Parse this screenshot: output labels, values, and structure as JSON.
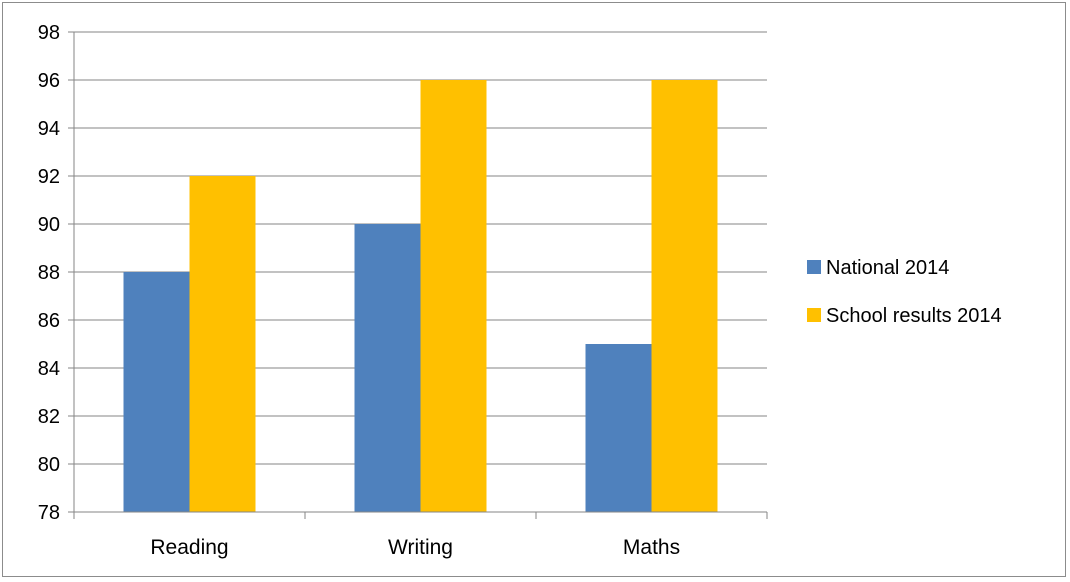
{
  "chart_data": {
    "type": "bar",
    "title": "",
    "xlabel": "",
    "ylabel": "",
    "categories": [
      "Reading",
      "Writing",
      "Maths"
    ],
    "series": [
      {
        "name": "National 2014",
        "color": "#4f81bd",
        "values": [
          88,
          90,
          85
        ]
      },
      {
        "name": "School results 2014",
        "color": "#ffc000",
        "values": [
          92,
          96,
          96
        ]
      }
    ],
    "ylim": [
      78,
      98
    ],
    "yticks": [
      78,
      80,
      82,
      84,
      86,
      88,
      90,
      92,
      94,
      96,
      98
    ],
    "grid": true,
    "legend_position": "right",
    "colors": {
      "gridline": "#868686",
      "axis": "#868686",
      "frame": "#8c8c8c"
    }
  }
}
